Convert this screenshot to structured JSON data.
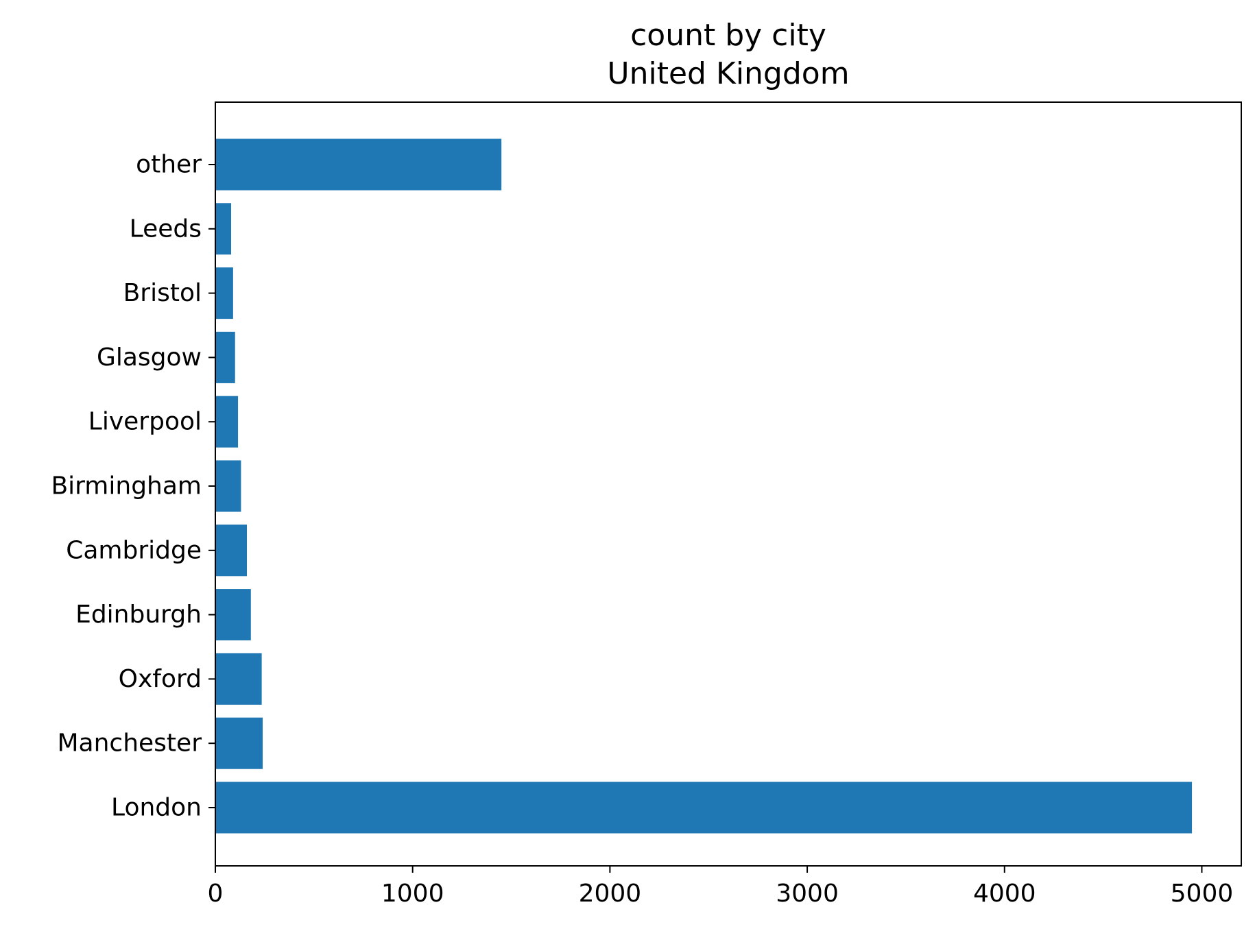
{
  "chart_data": {
    "type": "bar",
    "orientation": "horizontal",
    "title": "count by city",
    "subtitle": "United Kingdom",
    "xlabel": "",
    "ylabel": "",
    "xlim": [
      0,
      5200
    ],
    "x_ticks": [
      0,
      1000,
      2000,
      3000,
      4000,
      5000
    ],
    "x_tick_labels": [
      "0",
      "1000",
      "2000",
      "3000",
      "4000",
      "5000"
    ],
    "categories": [
      "London",
      "Manchester",
      "Oxford",
      "Edinburgh",
      "Cambridge",
      "Birmingham",
      "Liverpool",
      "Glasgow",
      "Bristol",
      "Leeds",
      "other"
    ],
    "values": [
      4950,
      240,
      235,
      180,
      160,
      130,
      115,
      100,
      90,
      80,
      1450
    ],
    "bar_color": "#1f77b4",
    "grid": false,
    "legend": "none"
  }
}
